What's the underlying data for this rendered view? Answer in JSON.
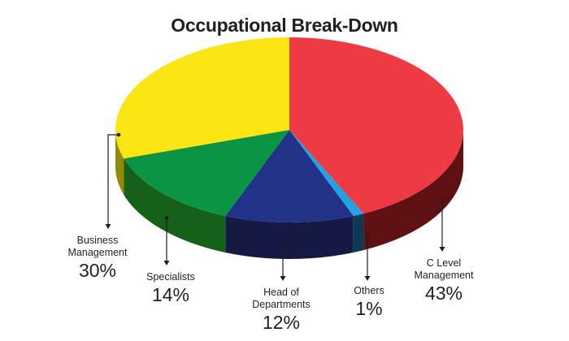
{
  "chart_data": {
    "type": "pie",
    "title": "Occupational Break-Down",
    "slices": [
      {
        "name": "C Level Management",
        "label_lines": [
          "C Level",
          "Management"
        ],
        "value": 43,
        "label": "43%",
        "color": "#ee3a43",
        "side_color": "#5e1012"
      },
      {
        "name": "Others",
        "label_lines": [
          "Others"
        ],
        "value": 1,
        "label": "1%",
        "color": "#1fa3e6",
        "side_color": "#0c3a55"
      },
      {
        "name": "Head of Departments",
        "label_lines": [
          "Head of",
          "Departments"
        ],
        "value": 12,
        "label": "12%",
        "color": "#223288",
        "side_color": "#141a44"
      },
      {
        "name": "Specialists",
        "label_lines": [
          "Specialists"
        ],
        "value": 14,
        "label": "14%",
        "color": "#0a9444",
        "side_color": "#15611a"
      },
      {
        "name": "Business Management",
        "label_lines": [
          "Business",
          "Management"
        ],
        "value": 30,
        "label": "30%",
        "color": "#fbe512",
        "side_color": "#938a08"
      }
    ]
  }
}
